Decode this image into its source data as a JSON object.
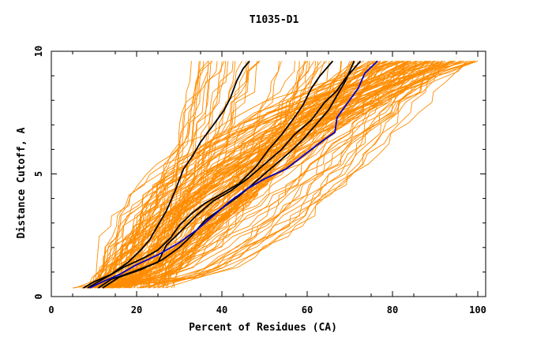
{
  "chart_data": {
    "type": "line",
    "title": "T1035-D1",
    "xlabel": "Percent of Residues (CA)",
    "ylabel": "Distance Cutoff, A",
    "xlim": [
      0,
      100
    ],
    "ylim": [
      0,
      10
    ],
    "x_ticks": [
      0,
      20,
      40,
      60,
      80,
      100
    ],
    "x_tick_labels": [
      "0",
      "20",
      "40",
      "60",
      "80",
      "100"
    ],
    "y_ticks": [
      0,
      5,
      10
    ],
    "y_tick_labels": [
      "0",
      "5",
      "10"
    ],
    "colors": {
      "background_models": "#ff8c00",
      "highlight_black": "#000000",
      "highlight_blue": "#0000cc",
      "frame": "#000000"
    },
    "background_series_count": 150,
    "highlight_series": [
      {
        "name": "model-black-1",
        "color": "#000000",
        "points": [
          [
            7.5,
            0.35
          ],
          [
            10,
            0.6
          ],
          [
            14,
            0.9
          ],
          [
            18,
            1.4
          ],
          [
            21,
            1.9
          ],
          [
            23,
            2.3
          ],
          [
            25,
            2.9
          ],
          [
            27,
            3.5
          ],
          [
            29,
            4.3
          ],
          [
            31,
            5.2
          ],
          [
            33,
            5.7
          ],
          [
            35,
            6.3
          ],
          [
            38,
            7.0
          ],
          [
            40.5,
            7.6
          ],
          [
            42,
            8.1
          ],
          [
            43.5,
            8.8
          ],
          [
            45,
            9.3
          ],
          [
            46.5,
            9.6
          ]
        ]
      },
      {
        "name": "model-black-2",
        "color": "#000000",
        "points": [
          [
            8.5,
            0.35
          ],
          [
            12,
            0.7
          ],
          [
            17,
            1.2
          ],
          [
            22,
            1.6
          ],
          [
            25,
            1.9
          ],
          [
            28,
            2.4
          ],
          [
            30,
            2.9
          ],
          [
            33,
            3.4
          ],
          [
            36,
            3.8
          ],
          [
            40,
            4.2
          ],
          [
            44,
            4.6
          ],
          [
            48,
            5.3
          ],
          [
            51,
            6.0
          ],
          [
            54,
            6.6
          ],
          [
            57,
            7.3
          ],
          [
            59,
            7.8
          ],
          [
            61,
            8.5
          ],
          [
            63,
            9.0
          ],
          [
            66,
            9.6
          ]
        ]
      },
      {
        "name": "model-black-3",
        "color": "#000000",
        "points": [
          [
            11,
            0.35
          ],
          [
            14,
            0.7
          ],
          [
            19,
            1.0
          ],
          [
            25,
            1.4
          ],
          [
            27,
            2.1
          ],
          [
            30,
            2.6
          ],
          [
            34,
            3.3
          ],
          [
            38,
            3.9
          ],
          [
            42,
            4.3
          ],
          [
            46,
            4.8
          ],
          [
            50,
            5.4
          ],
          [
            54,
            6.0
          ],
          [
            57,
            6.6
          ],
          [
            61,
            7.2
          ],
          [
            64,
            7.9
          ],
          [
            67,
            8.4
          ],
          [
            69,
            8.9
          ],
          [
            71,
            9.3
          ],
          [
            72.5,
            9.6
          ]
        ]
      },
      {
        "name": "model-black-4",
        "color": "#000000",
        "points": [
          [
            12,
            0.35
          ],
          [
            16,
            0.8
          ],
          [
            21,
            1.1
          ],
          [
            26,
            1.5
          ],
          [
            30,
            2.0
          ],
          [
            33,
            2.5
          ],
          [
            36,
            3.1
          ],
          [
            40,
            3.6
          ],
          [
            44,
            4.1
          ],
          [
            48,
            4.7
          ],
          [
            52,
            5.3
          ],
          [
            56,
            5.9
          ],
          [
            59,
            6.4
          ],
          [
            62,
            7.0
          ],
          [
            65,
            7.6
          ],
          [
            67,
            8.2
          ],
          [
            69,
            8.8
          ],
          [
            70,
            9.2
          ],
          [
            71,
            9.6
          ]
        ]
      },
      {
        "name": "model-blue",
        "color": "#0000cc",
        "points": [
          [
            9,
            0.35
          ],
          [
            12,
            0.6
          ],
          [
            16,
            0.9
          ],
          [
            20,
            1.3
          ],
          [
            25,
            1.7
          ],
          [
            30,
            2.2
          ],
          [
            34,
            2.7
          ],
          [
            38,
            3.3
          ],
          [
            42,
            3.9
          ],
          [
            46,
            4.4
          ],
          [
            50,
            4.8
          ],
          [
            55,
            5.2
          ],
          [
            58,
            5.6
          ],
          [
            61,
            6.0
          ],
          [
            64,
            6.4
          ],
          [
            66.5,
            6.7
          ],
          [
            67,
            7.3
          ],
          [
            69.5,
            7.9
          ],
          [
            72,
            8.5
          ],
          [
            73.5,
            9.1
          ],
          [
            76.5,
            9.6
          ]
        ]
      }
    ]
  }
}
